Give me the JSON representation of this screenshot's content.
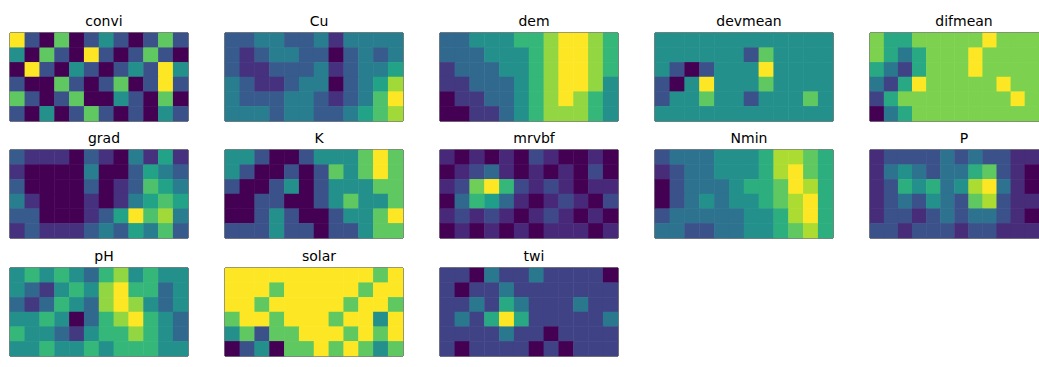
{
  "chart_data": [
    {
      "type": "heatmap",
      "title": "convi",
      "tick_labels": false,
      "cells": [
        [
          6,
          3,
          2,
          5,
          2,
          3,
          4,
          3,
          2,
          3,
          5,
          3
        ],
        [
          4,
          2,
          5,
          3,
          2,
          6,
          3,
          2,
          3,
          5,
          3,
          2
        ],
        [
          2,
          6,
          3,
          2,
          4,
          3,
          2,
          3,
          4,
          3,
          6,
          4
        ],
        [
          3,
          2,
          2,
          5,
          3,
          2,
          3,
          5,
          2,
          3,
          6,
          3
        ],
        [
          5,
          3,
          2,
          3,
          5,
          2,
          2,
          4,
          3,
          2,
          5,
          2
        ],
        [
          3,
          2,
          4,
          2,
          3,
          5,
          3,
          2,
          3,
          2,
          4,
          3
        ]
      ]
    },
    {
      "type": "heatmap",
      "title": "Cu",
      "tick_labels": false,
      "cells": [
        [
          3,
          3,
          4,
          4,
          3,
          3,
          4,
          2,
          4,
          4,
          4,
          4
        ],
        [
          3,
          2,
          3,
          4,
          4,
          3,
          3,
          1,
          3,
          4,
          3,
          4
        ],
        [
          3,
          2,
          2,
          3,
          3,
          3,
          4,
          2,
          3,
          4,
          4,
          5
        ],
        [
          4,
          3,
          2,
          2,
          3,
          4,
          4,
          1,
          3,
          4,
          5,
          7
        ],
        [
          4,
          3,
          3,
          3,
          4,
          4,
          3,
          2,
          3,
          4,
          6,
          8
        ],
        [
          4,
          4,
          4,
          3,
          4,
          4,
          3,
          3,
          4,
          5,
          6,
          7
        ]
      ]
    },
    {
      "type": "heatmap",
      "title": "dem",
      "tick_labels": false,
      "cells": [
        [
          5,
          5,
          6,
          6,
          6,
          7,
          7,
          8,
          9,
          9,
          8,
          7
        ],
        [
          5,
          5,
          5,
          6,
          6,
          6,
          7,
          8,
          9,
          9,
          8,
          7
        ],
        [
          4,
          5,
          5,
          5,
          6,
          6,
          7,
          8,
          9,
          9,
          8,
          7
        ],
        [
          4,
          4,
          5,
          5,
          5,
          6,
          7,
          8,
          9,
          9,
          8,
          6
        ],
        [
          3,
          4,
          4,
          5,
          5,
          6,
          7,
          8,
          9,
          8,
          7,
          6
        ],
        [
          3,
          3,
          4,
          4,
          5,
          6,
          7,
          8,
          8,
          8,
          7,
          6
        ]
      ]
    },
    {
      "type": "heatmap",
      "title": "devmean",
      "tick_labels": false,
      "cells": [
        [
          4,
          4,
          4,
          4,
          4,
          4,
          4,
          4,
          4,
          4,
          4,
          4
        ],
        [
          4,
          4,
          4,
          4,
          4,
          4,
          3,
          5,
          4,
          4,
          4,
          4
        ],
        [
          4,
          3,
          2,
          3,
          4,
          4,
          4,
          6,
          4,
          4,
          4,
          4
        ],
        [
          3,
          2,
          4,
          6,
          4,
          4,
          4,
          5,
          4,
          4,
          4,
          4
        ],
        [
          3,
          4,
          4,
          5,
          4,
          4,
          3,
          4,
          4,
          4,
          5,
          4
        ],
        [
          4,
          4,
          4,
          4,
          4,
          4,
          4,
          4,
          4,
          4,
          4,
          4
        ]
      ]
    },
    {
      "type": "heatmap",
      "title": "difmean",
      "tick_labels": false,
      "cells": [
        [
          6,
          5,
          5,
          6,
          6,
          6,
          6,
          6,
          7,
          6,
          6,
          6
        ],
        [
          6,
          5,
          4,
          5,
          6,
          6,
          6,
          7,
          6,
          6,
          6,
          6
        ],
        [
          5,
          4,
          3,
          5,
          6,
          6,
          6,
          7,
          6,
          6,
          6,
          6
        ],
        [
          4,
          3,
          5,
          7,
          6,
          6,
          6,
          6,
          6,
          7,
          6,
          6
        ],
        [
          3,
          5,
          6,
          6,
          6,
          6,
          6,
          6,
          6,
          6,
          7,
          6
        ],
        [
          2,
          4,
          5,
          6,
          6,
          6,
          6,
          6,
          6,
          6,
          6,
          6
        ]
      ]
    },
    {
      "type": "heatmap",
      "title": "grad",
      "tick_labels": false,
      "cells": [
        [
          3,
          2,
          2,
          2,
          1,
          3,
          2,
          1,
          4,
          2,
          5,
          2
        ],
        [
          2,
          1,
          1,
          1,
          1,
          4,
          1,
          1,
          3,
          5,
          4,
          3
        ],
        [
          3,
          1,
          1,
          1,
          1,
          3,
          1,
          2,
          3,
          6,
          5,
          4
        ],
        [
          4,
          2,
          1,
          1,
          1,
          2,
          1,
          2,
          4,
          5,
          6,
          5
        ],
        [
          3,
          3,
          1,
          1,
          1,
          2,
          3,
          5,
          8,
          6,
          7,
          4
        ],
        [
          2,
          3,
          2,
          2,
          2,
          3,
          4,
          3,
          5,
          4,
          6,
          3
        ]
      ]
    },
    {
      "type": "heatmap",
      "title": "K",
      "tick_labels": false,
      "cells": [
        [
          3,
          3,
          2,
          1,
          1,
          2,
          3,
          3,
          3,
          4,
          5,
          4
        ],
        [
          3,
          2,
          1,
          1,
          2,
          1,
          2,
          4,
          3,
          4,
          5,
          4
        ],
        [
          2,
          1,
          1,
          2,
          3,
          1,
          2,
          3,
          3,
          3,
          4,
          4
        ],
        [
          1,
          1,
          2,
          2,
          1,
          1,
          2,
          3,
          4,
          3,
          3,
          4
        ],
        [
          1,
          1,
          2,
          3,
          2,
          1,
          1,
          2,
          3,
          3,
          4,
          5
        ],
        [
          2,
          2,
          2,
          3,
          2,
          2,
          1,
          2,
          2,
          3,
          4,
          4
        ]
      ]
    },
    {
      "type": "heatmap",
      "title": "mrvbf",
      "tick_labels": false,
      "cells": [
        [
          1,
          0,
          1,
          0,
          1,
          0,
          2,
          1,
          0,
          0,
          1,
          0
        ],
        [
          0,
          1,
          2,
          3,
          1,
          0,
          1,
          0,
          1,
          0,
          2,
          0
        ],
        [
          1,
          2,
          7,
          9,
          6,
          2,
          1,
          2,
          1,
          0,
          1,
          1
        ],
        [
          0,
          3,
          6,
          5,
          3,
          1,
          0,
          1,
          2,
          1,
          0,
          2
        ],
        [
          1,
          2,
          1,
          2,
          1,
          0,
          1,
          2,
          1,
          0,
          1,
          0
        ],
        [
          0,
          1,
          0,
          1,
          0,
          1,
          0,
          1,
          1,
          1,
          0,
          1
        ]
      ]
    },
    {
      "type": "heatmap",
      "title": "Nmin",
      "tick_labels": false,
      "cells": [
        [
          3,
          4,
          4,
          4,
          5,
          5,
          5,
          6,
          8,
          8,
          7,
          6
        ],
        [
          2,
          3,
          4,
          4,
          5,
          5,
          5,
          6,
          8,
          9,
          7,
          6
        ],
        [
          1,
          3,
          4,
          4,
          4,
          5,
          6,
          6,
          7,
          9,
          8,
          6
        ],
        [
          1,
          3,
          4,
          5,
          4,
          5,
          5,
          6,
          7,
          8,
          9,
          6
        ],
        [
          3,
          4,
          4,
          4,
          4,
          4,
          5,
          5,
          6,
          8,
          9,
          6
        ],
        [
          4,
          4,
          3,
          3,
          4,
          4,
          5,
          5,
          6,
          7,
          8,
          6
        ]
      ]
    },
    {
      "type": "heatmap",
      "title": "P",
      "tick_labels": false,
      "cells": [
        [
          2,
          3,
          3,
          3,
          3,
          4,
          3,
          4,
          3,
          3,
          2,
          2
        ],
        [
          2,
          4,
          5,
          4,
          3,
          4,
          4,
          6,
          7,
          3,
          2,
          1
        ],
        [
          2,
          3,
          6,
          5,
          6,
          4,
          5,
          8,
          9,
          4,
          2,
          1
        ],
        [
          2,
          3,
          4,
          3,
          5,
          4,
          3,
          7,
          8,
          3,
          2,
          2
        ],
        [
          2,
          3,
          3,
          2,
          3,
          4,
          3,
          4,
          4,
          3,
          2,
          1
        ],
        [
          3,
          3,
          2,
          3,
          3,
          3,
          2,
          3,
          3,
          2,
          2,
          2
        ]
      ]
    },
    {
      "type": "heatmap",
      "title": "pH",
      "tick_labels": false,
      "cells": [
        [
          5,
          6,
          5,
          6,
          5,
          4,
          6,
          7,
          5,
          6,
          5,
          5
        ],
        [
          5,
          4,
          3,
          5,
          6,
          5,
          7,
          8,
          6,
          6,
          4,
          5
        ],
        [
          4,
          3,
          4,
          6,
          5,
          4,
          7,
          8,
          7,
          5,
          4,
          5
        ],
        [
          5,
          5,
          6,
          5,
          2,
          4,
          6,
          7,
          8,
          6,
          5,
          4
        ],
        [
          6,
          5,
          5,
          4,
          3,
          5,
          6,
          6,
          7,
          6,
          5,
          4
        ],
        [
          5,
          5,
          6,
          5,
          5,
          6,
          5,
          6,
          6,
          6,
          5,
          5
        ]
      ]
    },
    {
      "type": "heatmap",
      "title": "solar",
      "tick_labels": false,
      "cells": [
        [
          9,
          9,
          9,
          9,
          9,
          9,
          9,
          9,
          9,
          9,
          8,
          9
        ],
        [
          9,
          9,
          9,
          8,
          9,
          9,
          9,
          9,
          9,
          8,
          9,
          9
        ],
        [
          9,
          9,
          8,
          9,
          9,
          9,
          9,
          9,
          8,
          9,
          9,
          8
        ],
        [
          8,
          9,
          9,
          8,
          9,
          9,
          9,
          8,
          9,
          9,
          7,
          9
        ],
        [
          7,
          8,
          6,
          8,
          8,
          9,
          9,
          9,
          8,
          9,
          8,
          9
        ],
        [
          5,
          6,
          7,
          5,
          8,
          8,
          9,
          8,
          9,
          8,
          7,
          8
        ]
      ]
    },
    {
      "type": "heatmap",
      "title": "twi",
      "tick_labels": false,
      "cells": [
        [
          4,
          4,
          3,
          5,
          4,
          4,
          5,
          4,
          4,
          4,
          4,
          3
        ],
        [
          4,
          3,
          4,
          4,
          5,
          4,
          4,
          4,
          4,
          4,
          4,
          4
        ],
        [
          4,
          4,
          5,
          4,
          6,
          5,
          4,
          4,
          4,
          5,
          4,
          4
        ],
        [
          4,
          5,
          4,
          6,
          8,
          6,
          4,
          4,
          4,
          4,
          4,
          5
        ],
        [
          4,
          4,
          4,
          4,
          5,
          4,
          4,
          3,
          4,
          4,
          4,
          4
        ],
        [
          4,
          3,
          4,
          4,
          4,
          4,
          3,
          4,
          3,
          4,
          4,
          4
        ]
      ]
    }
  ]
}
